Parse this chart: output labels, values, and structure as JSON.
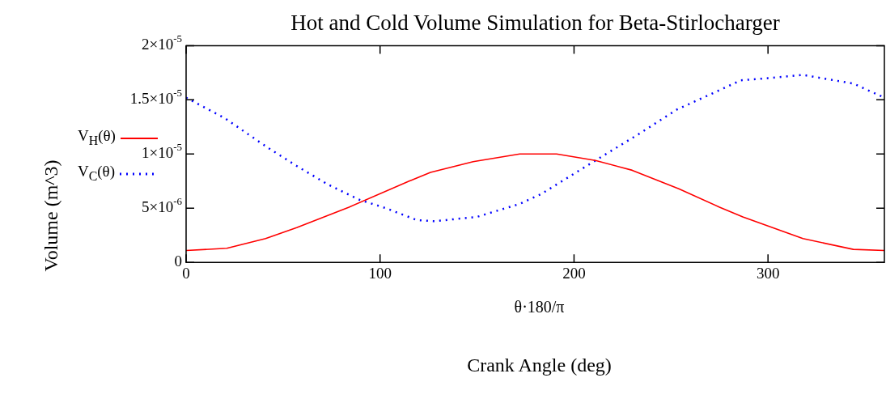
{
  "chart_data": {
    "type": "line",
    "title": "Hot and Cold Volume Simulation for Beta-Stirlocharger",
    "xlabel": "Crank Angle (deg)",
    "ylabel": "Volume (m^3)",
    "annotations": [
      "θ·180/π"
    ],
    "xlim": [
      0,
      360
    ],
    "xticks": [
      0,
      100,
      200,
      300
    ],
    "ylim": [
      0,
      2e-05
    ],
    "yticks": [
      0,
      {
        "value": 5e-06,
        "label": "5×10$^{-6}$"
      },
      {
        "value": 1e-05,
        "label": "1×10$^{-5}$"
      },
      {
        "value": 1.5e-05,
        "label": "1.5×10$^{-5}$"
      },
      {
        "value": 2e-05,
        "label": "2×10$^{-5}$"
      }
    ],
    "grid": false,
    "legend": "left",
    "marker": "none",
    "series": [
      {
        "name": "V$_{H}$(θ)",
        "color": "#ff0000",
        "line_style": "solid",
        "x": [
          0,
          21,
          41,
          57,
          84,
          115,
          126,
          148,
          172,
          191,
          211,
          230,
          254,
          275,
          287,
          318,
          344,
          360
        ],
        "values": [
          1.1e-06,
          1.3e-06,
          2.2e-06,
          3.2e-06,
          5.1e-06,
          7.5e-06,
          8.3e-06,
          9.3e-06,
          1e-05,
          1e-05,
          9.4e-06,
          8.5e-06,
          6.8e-06,
          5.1e-06,
          4.2e-06,
          2.2e-06,
          1.2e-06,
          1.1e-06
        ]
      },
      {
        "name": "V$_{C}$(θ)",
        "color": "#0000ff",
        "line_style": "dotted",
        "x": [
          0,
          20,
          42,
          57,
          73,
          89,
          103,
          119,
          128,
          150,
          172,
          183,
          211,
          233,
          253,
          269,
          286,
          300,
          318,
          344,
          360
        ],
        "values": [
          1.52e-05,
          1.33e-05,
          1.06e-05,
          8.9e-06,
          7.2e-06,
          5.8e-06,
          5e-06,
          3.9e-06,
          3.8e-06,
          4.2e-06,
          5.4e-06,
          6.3e-06,
          9.4e-06,
          1.18e-05,
          1.41e-05,
          1.54e-05,
          1.68e-05,
          1.7e-05,
          1.73e-05,
          1.65e-05,
          1.52e-05
        ]
      }
    ]
  }
}
